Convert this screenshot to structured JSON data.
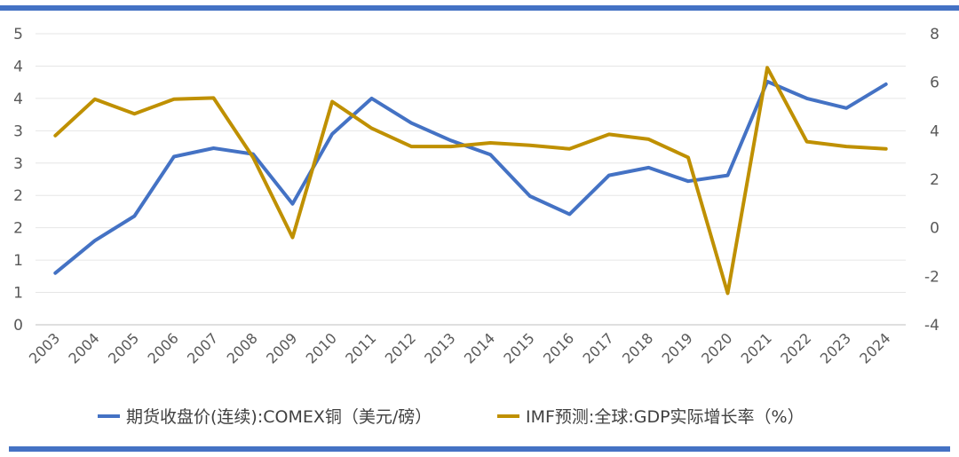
{
  "chart_data": {
    "type": "line",
    "title": "",
    "x": [
      "2003",
      "2004",
      "2005",
      "2006",
      "2007",
      "2008",
      "2009",
      "2010",
      "2011",
      "2012",
      "2013",
      "2014",
      "2015",
      "2016",
      "2017",
      "2018",
      "2019",
      "2020",
      "2021",
      "2022",
      "2023",
      "2024"
    ],
    "series": [
      {
        "name": "期货收盘价(连续):COMEX铜（美元/磅）",
        "axis": "left",
        "color": "#4472c4",
        "values": [
          0.8,
          1.3,
          1.68,
          2.6,
          2.73,
          2.64,
          1.87,
          2.95,
          3.5,
          3.12,
          2.85,
          2.63,
          1.99,
          1.71,
          2.31,
          2.43,
          2.22,
          2.31,
          3.76,
          3.5,
          3.35,
          3.72
        ]
      },
      {
        "name": "IMF预测:全球:GDP实际增长率（%）",
        "axis": "right",
        "color": "#bf9000",
        "values": [
          3.8,
          5.3,
          4.7,
          5.3,
          5.35,
          2.9,
          -0.4,
          5.2,
          4.1,
          3.35,
          3.35,
          3.5,
          3.4,
          3.25,
          3.85,
          3.65,
          2.9,
          -2.7,
          6.6,
          3.55,
          3.35,
          3.25
        ]
      }
    ],
    "y_left": {
      "ylim": [
        0,
        4.5
      ],
      "tick_values": [
        0,
        0.5,
        1,
        1.5,
        2,
        2.5,
        3,
        3.5,
        4,
        4.5
      ],
      "tick_labels": [
        "0",
        "1",
        "1",
        "2",
        "2",
        "3",
        "3",
        "4",
        "4",
        "5"
      ]
    },
    "y_right": {
      "ylim": [
        -4,
        8
      ],
      "tick_values": [
        -4,
        -2,
        0,
        2,
        4,
        6,
        8
      ],
      "tick_labels": [
        "-4",
        "-2",
        "0",
        "2",
        "4",
        "6",
        "8"
      ]
    },
    "grid": true,
    "legend_position": "bottom"
  }
}
